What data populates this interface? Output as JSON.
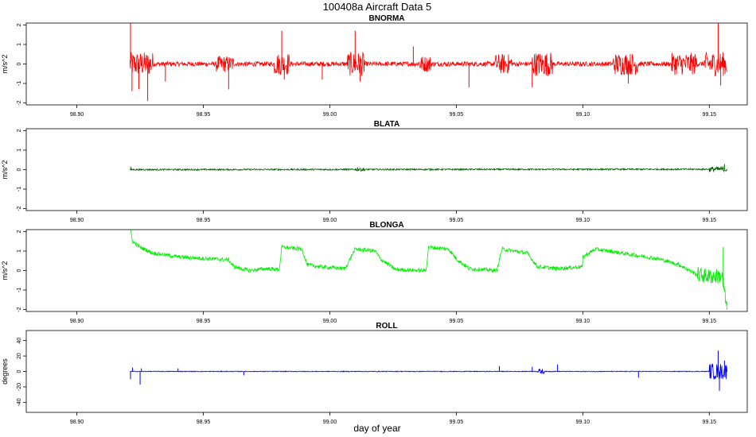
{
  "figure": {
    "title": "100408a   Aircraft Data 5",
    "xlabel": "day of year"
  },
  "chart_data": [
    {
      "type": "line",
      "title": "BNORMA",
      "ylabel": "m/s^2",
      "color": "#ff0000",
      "xlim": [
        98.88,
        99.165
      ],
      "ylim": [
        -2.1,
        2.1
      ],
      "x_ticks": [
        "98.90",
        "98.95",
        "99.00",
        "99.05",
        "99.10",
        "99.15"
      ],
      "x_tick_values": [
        98.9,
        98.95,
        99.0,
        99.05,
        99.1,
        99.15
      ],
      "y_ticks": [
        "-2",
        "-1",
        "0",
        "1",
        "2"
      ],
      "y_tick_values": [
        -2,
        -1,
        0,
        1,
        2
      ],
      "series": [
        {
          "name": "BNORMA",
          "x_start": 98.921,
          "x_end": 99.157,
          "base_points": [
            [
              98.921,
              0.0
            ],
            [
              99.157,
              0.0
            ]
          ],
          "noise_amplitude": 0.12,
          "bursts": [
            [
              98.921,
              98.93,
              0.5
            ],
            [
              98.955,
              98.962,
              0.3
            ],
            [
              98.978,
              98.984,
              0.45
            ],
            [
              99.007,
              99.014,
              0.5
            ],
            [
              99.035,
              99.04,
              0.3
            ],
            [
              99.065,
              99.072,
              0.4
            ],
            [
              99.08,
              99.088,
              0.5
            ],
            [
              99.112,
              99.122,
              0.45
            ],
            [
              99.135,
              99.145,
              0.45
            ],
            [
              99.148,
              99.157,
              0.5
            ]
          ],
          "spikes": [
            [
              98.9212,
              2.2
            ],
            [
              98.9218,
              -1.4
            ],
            [
              98.9245,
              -1.3
            ],
            [
              98.928,
              -1.9
            ],
            [
              98.935,
              -0.9
            ],
            [
              98.96,
              -1.3
            ],
            [
              98.981,
              1.7
            ],
            [
              98.982,
              -0.8
            ],
            [
              98.997,
              -0.8
            ],
            [
              99.01,
              1.7
            ],
            [
              99.012,
              -0.9
            ],
            [
              99.033,
              0.9
            ],
            [
              99.055,
              -1.2
            ],
            [
              99.08,
              -1.2
            ],
            [
              99.118,
              -1.0
            ],
            [
              99.1535,
              2.2
            ],
            [
              99.1545,
              -1.1
            ]
          ]
        }
      ]
    },
    {
      "type": "line",
      "title": "BLATA",
      "ylabel": "m/s^2",
      "color": "#006400",
      "xlim": [
        98.88,
        99.165
      ],
      "ylim": [
        -2.1,
        2.1
      ],
      "x_ticks": [
        "98.90",
        "98.95",
        "99.00",
        "99.05",
        "99.10",
        "99.15"
      ],
      "x_tick_values": [
        98.9,
        98.95,
        99.0,
        99.05,
        99.1,
        99.15
      ],
      "y_ticks": [
        "-2",
        "-1",
        "0",
        "1",
        "2"
      ],
      "y_tick_values": [
        -2,
        -1,
        0,
        1,
        2
      ],
      "series": [
        {
          "name": "BLATA",
          "x_start": 98.921,
          "x_end": 99.157,
          "base_points": [
            [
              98.921,
              0.0
            ],
            [
              99.157,
              0.02
            ]
          ],
          "noise_amplitude": 0.04,
          "bursts": [
            [
              99.01,
              99.014,
              0.05
            ],
            [
              99.15,
              99.157,
              0.1
            ]
          ],
          "spikes": [
            [
              98.9213,
              0.15
            ],
            [
              99.011,
              0.12
            ],
            [
              99.156,
              0.28
            ]
          ]
        }
      ]
    },
    {
      "type": "line",
      "title": "BLONGA",
      "ylabel": "m/s^2",
      "color": "#00ee00",
      "xlim": [
        98.88,
        99.165
      ],
      "ylim": [
        -2.1,
        2.1
      ],
      "x_ticks": [
        "98.90",
        "98.95",
        "99.00",
        "99.05",
        "99.10",
        "99.15"
      ],
      "x_tick_values": [
        98.9,
        98.95,
        99.0,
        99.05,
        99.1,
        99.15
      ],
      "y_ticks": [
        "-2",
        "-1",
        "0",
        "1",
        "2"
      ],
      "y_tick_values": [
        -2,
        -1,
        0,
        1,
        2
      ],
      "series": [
        {
          "name": "BLONGA",
          "x_start": 98.921,
          "x_end": 99.157,
          "base_points": [
            [
              98.921,
              2.2
            ],
            [
              98.922,
              1.5
            ],
            [
              98.925,
              1.2
            ],
            [
              98.93,
              0.9
            ],
            [
              98.94,
              0.7
            ],
            [
              98.96,
              0.55
            ],
            [
              98.962,
              0.2
            ],
            [
              98.968,
              0.0
            ],
            [
              98.975,
              0.1
            ],
            [
              98.98,
              0.05
            ],
            [
              98.981,
              1.2
            ],
            [
              98.989,
              1.1
            ],
            [
              98.991,
              0.3
            ],
            [
              98.996,
              0.2
            ],
            [
              99.006,
              0.1
            ],
            [
              99.01,
              1.1
            ],
            [
              99.018,
              1.0
            ],
            [
              99.02,
              0.6
            ],
            [
              99.026,
              0.05
            ],
            [
              99.038,
              0.0
            ],
            [
              99.039,
              1.2
            ],
            [
              99.047,
              1.1
            ],
            [
              99.05,
              0.6
            ],
            [
              99.055,
              0.1
            ],
            [
              99.066,
              0.0
            ],
            [
              99.068,
              1.1
            ],
            [
              99.078,
              0.9
            ],
            [
              99.082,
              0.2
            ],
            [
              99.09,
              0.1
            ],
            [
              99.1,
              0.2
            ],
            [
              99.1,
              0.7
            ],
            [
              99.105,
              1.1
            ],
            [
              99.115,
              0.9
            ],
            [
              99.13,
              0.6
            ],
            [
              99.138,
              0.3
            ],
            [
              99.145,
              -0.2
            ],
            [
              99.15,
              -0.3
            ],
            [
              99.155,
              -0.3
            ],
            [
              99.157,
              -2.0
            ]
          ],
          "noise_amplitude": 0.1,
          "bursts": [
            [
              99.145,
              99.157,
              0.3
            ]
          ],
          "spikes": [
            [
              99.1555,
              1.2
            ],
            [
              99.157,
              -1.9
            ]
          ]
        }
      ]
    },
    {
      "type": "line",
      "title": "ROLL",
      "ylabel": "degrees",
      "color": "#0000ff",
      "xlim": [
        98.88,
        99.165
      ],
      "ylim": [
        -53,
        53
      ],
      "x_ticks": [
        "98.90",
        "98.95",
        "99.00",
        "99.05",
        "99.10",
        "99.15"
      ],
      "x_tick_values": [
        98.9,
        98.95,
        99.0,
        99.05,
        99.1,
        99.15
      ],
      "y_ticks": [
        "-40",
        "-20",
        "0",
        "20",
        "40"
      ],
      "y_tick_values": [
        -40,
        -20,
        0,
        20,
        40
      ],
      "series": [
        {
          "name": "ROLL",
          "x_start": 98.921,
          "x_end": 99.157,
          "base_points": [
            [
              98.921,
              0.0
            ],
            [
              99.157,
              0.0
            ]
          ],
          "noise_amplitude": 0.5,
          "bursts": [
            [
              99.082,
              99.085,
              3.0
            ],
            [
              99.15,
              99.157,
              10.0
            ]
          ],
          "spikes": [
            [
              98.9212,
              -10
            ],
            [
              98.922,
              5
            ],
            [
              98.925,
              -17
            ],
            [
              98.9255,
              4
            ],
            [
              98.94,
              4
            ],
            [
              98.966,
              -5
            ],
            [
              99.067,
              7
            ],
            [
              99.08,
              6
            ],
            [
              99.09,
              9
            ],
            [
              99.122,
              -8
            ],
            [
              99.1535,
              27
            ],
            [
              99.154,
              -25
            ],
            [
              99.156,
              14
            ]
          ]
        }
      ]
    }
  ]
}
